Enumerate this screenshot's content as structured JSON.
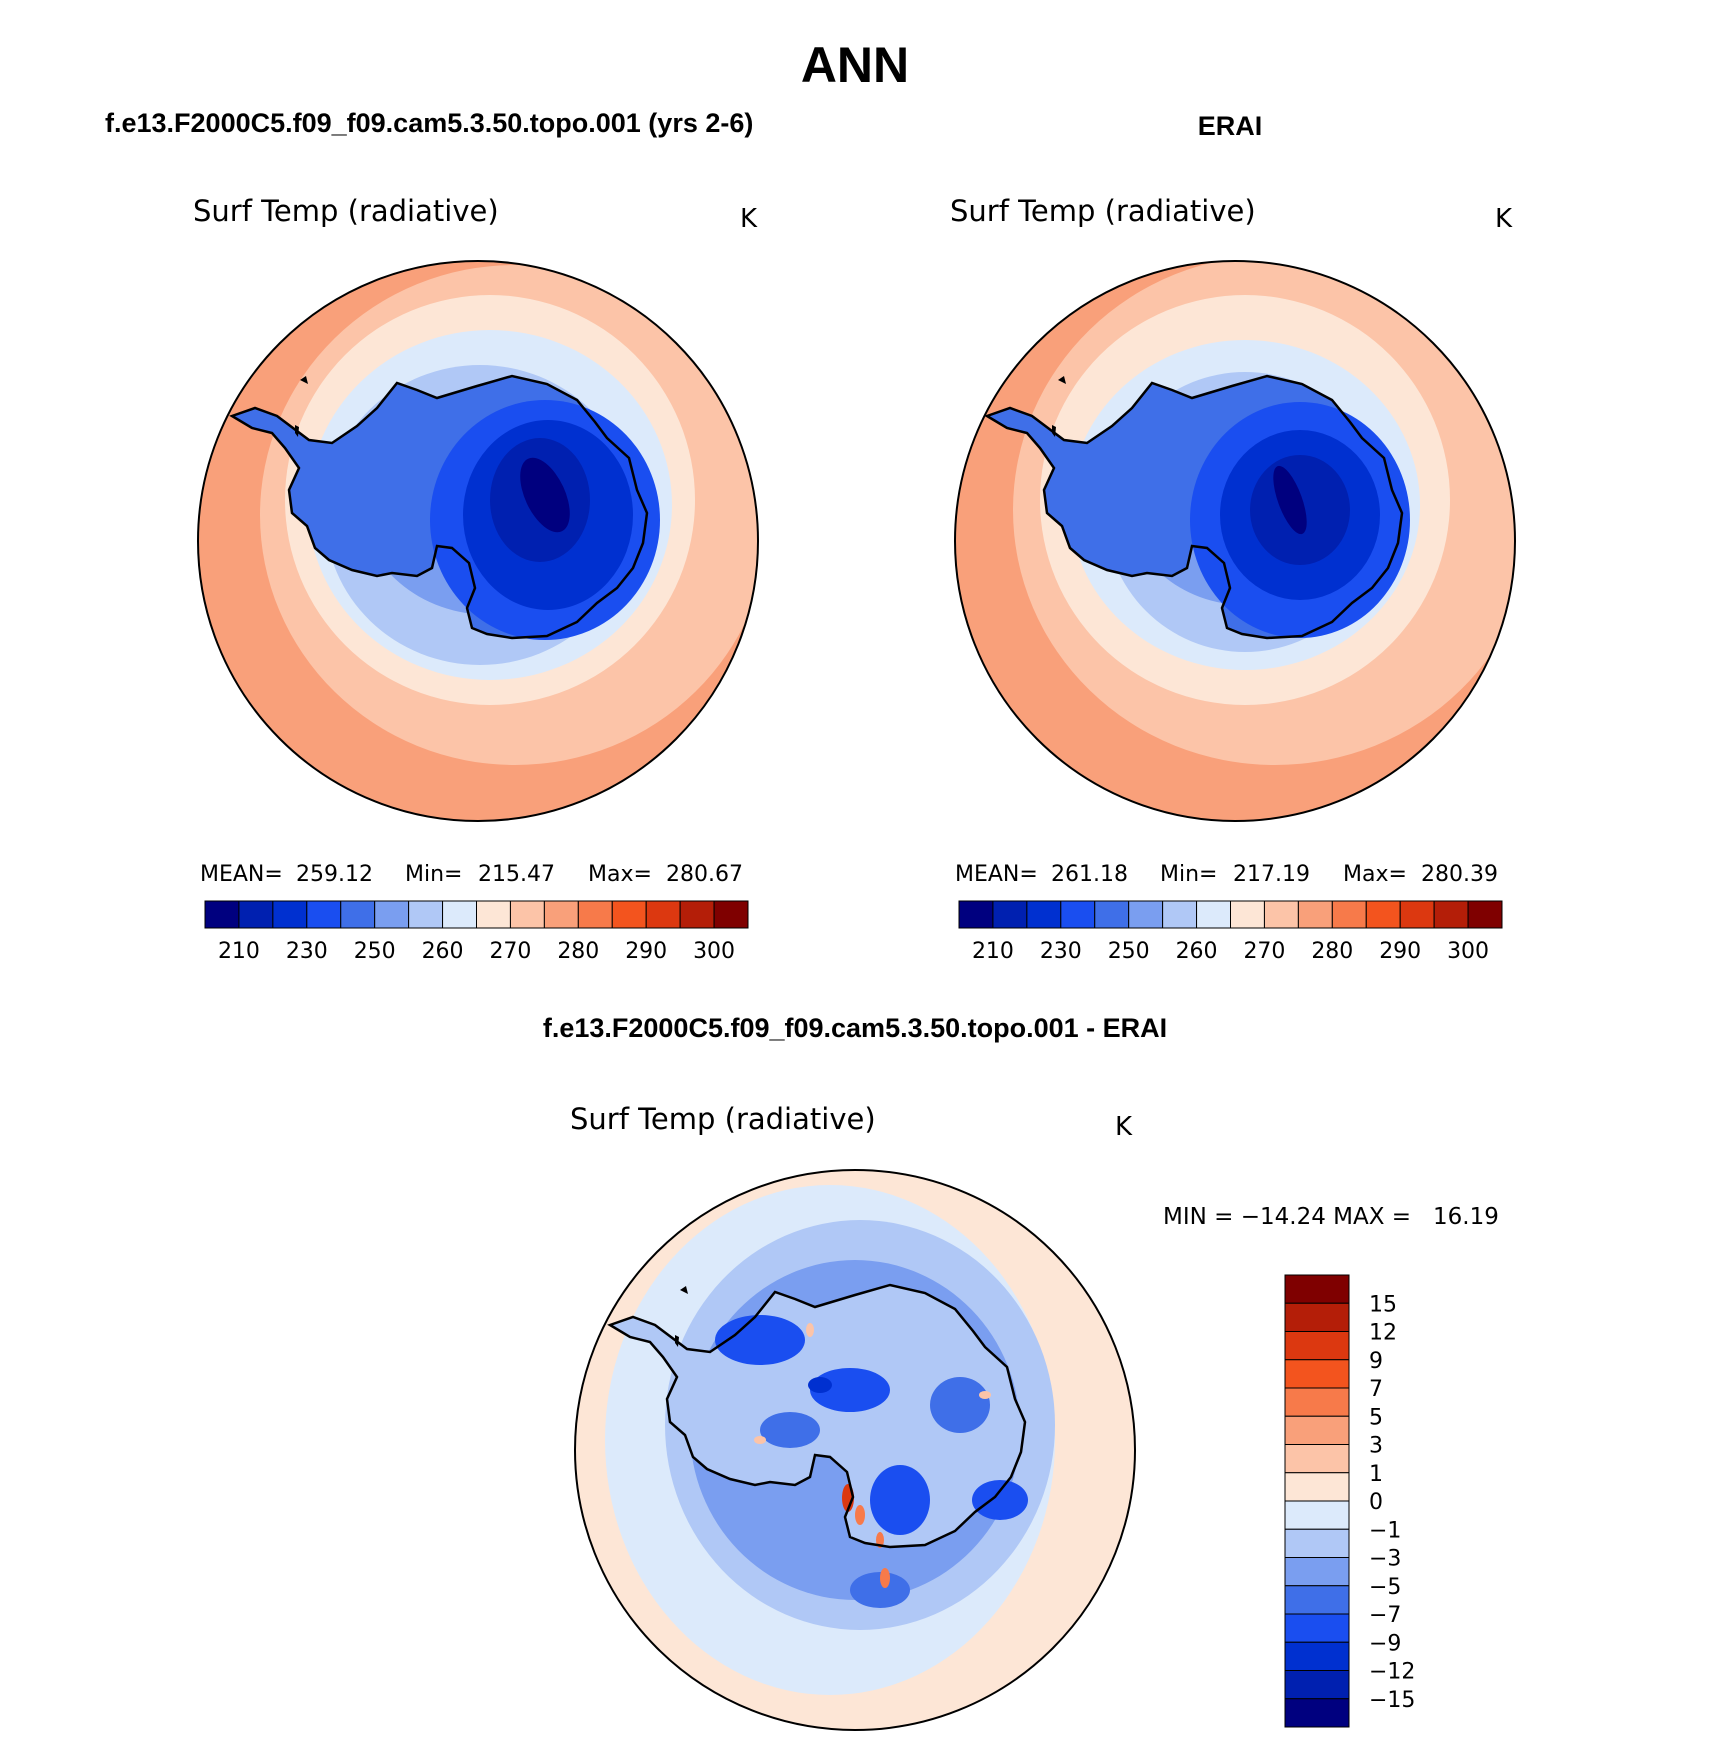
{
  "title": "ANN",
  "panels": [
    {
      "case_title": "f.e13.F2000C5.f09_f09.cam5.3.50.topo.001 (yrs 2-6)",
      "variable": "Surf Temp (radiative)",
      "units": "K",
      "stats": {
        "mean_label": "MEAN=",
        "mean": "259.12",
        "min_label": "Min=",
        "min": "215.47",
        "max_label": "Max=",
        "max": "280.67"
      }
    },
    {
      "case_title": "ERAI",
      "variable": "Surf Temp (radiative)",
      "units": "K",
      "stats": {
        "mean_label": "MEAN=",
        "mean": "261.18",
        "min_label": "Min=",
        "min": "217.19",
        "max_label": "Max=",
        "max": "280.39"
      }
    }
  ],
  "abs_colorbar": {
    "colors": [
      "#00007f",
      "#0020b0",
      "#0030d0",
      "#1a4ef0",
      "#3f6fe8",
      "#7a9ef0",
      "#b0c8f6",
      "#dceafb",
      "#fde6d6",
      "#fcc4a8",
      "#f9a07a",
      "#f77a4a",
      "#f3541e",
      "#dc3810",
      "#b41e08",
      "#7f0000"
    ],
    "labels": [
      "210",
      "230",
      "250",
      "260",
      "270",
      "280",
      "290",
      "300"
    ]
  },
  "diff_panel": {
    "title": "f.e13.F2000C5.f09_f09.cam5.3.50.topo.001 - ERAI",
    "variable": "Surf Temp (radiative)",
    "units": "K",
    "minmax_text": "MIN = −14.24 MAX =   16.19"
  },
  "diff_colorbar": {
    "colors": [
      "#7f0000",
      "#b41e08",
      "#dc3810",
      "#f3541e",
      "#f77a4a",
      "#f9a07a",
      "#fcc4a8",
      "#fde6d6",
      "#dceafb",
      "#b0c8f6",
      "#7a9ef0",
      "#3f6fe8",
      "#1a4ef0",
      "#0030d0",
      "#0020b0",
      "#00007f"
    ],
    "labels": [
      "15",
      "12",
      "9",
      "7",
      "5",
      "3",
      "1",
      "0",
      "−1",
      "−3",
      "−5",
      "−7",
      "−9",
      "−12",
      "−15"
    ]
  }
}
